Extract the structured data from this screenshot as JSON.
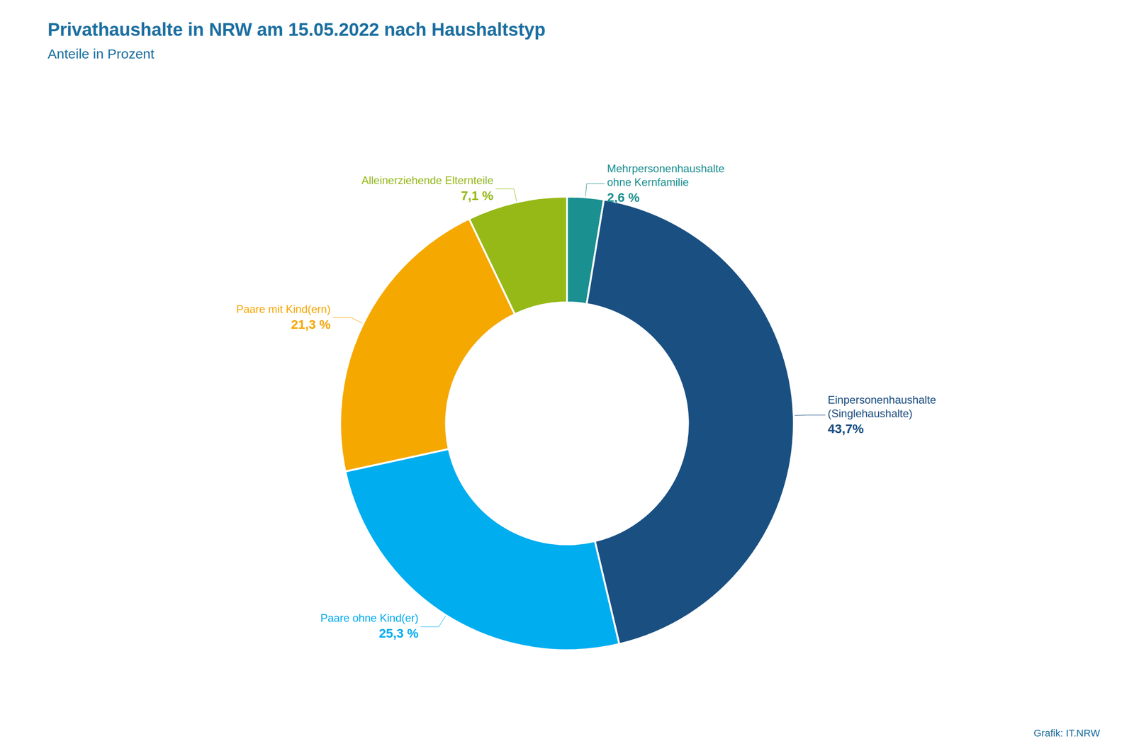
{
  "chart_data": {
    "type": "pie",
    "title": "Privathaushalte in NRW am 15.05.2022 nach Haushaltstyp",
    "subtitle": "Anteile in Prozent",
    "annotations": [
      "Grafik: IT.NRW"
    ],
    "categories": [
      "Mehrpersonenhaushalte\nohne Kernfamilie",
      "Einpersonenhaushalte\n(Singlehaushalte)",
      "Paare ohne Kind(er)",
      "Paare mit Kind(ern)",
      "Alleinerziehende Elternteile"
    ],
    "values": [
      2.6,
      43.7,
      25.3,
      21.3,
      7.1
    ],
    "value_labels": [
      "2,6 %",
      "43,7%",
      "25,3 %",
      "21,3 %",
      "7,1 %"
    ],
    "colors": [
      "#1a9090",
      "#1a4f82",
      "#00adef",
      "#f5a800",
      "#96b918"
    ],
    "data_labels": true
  }
}
